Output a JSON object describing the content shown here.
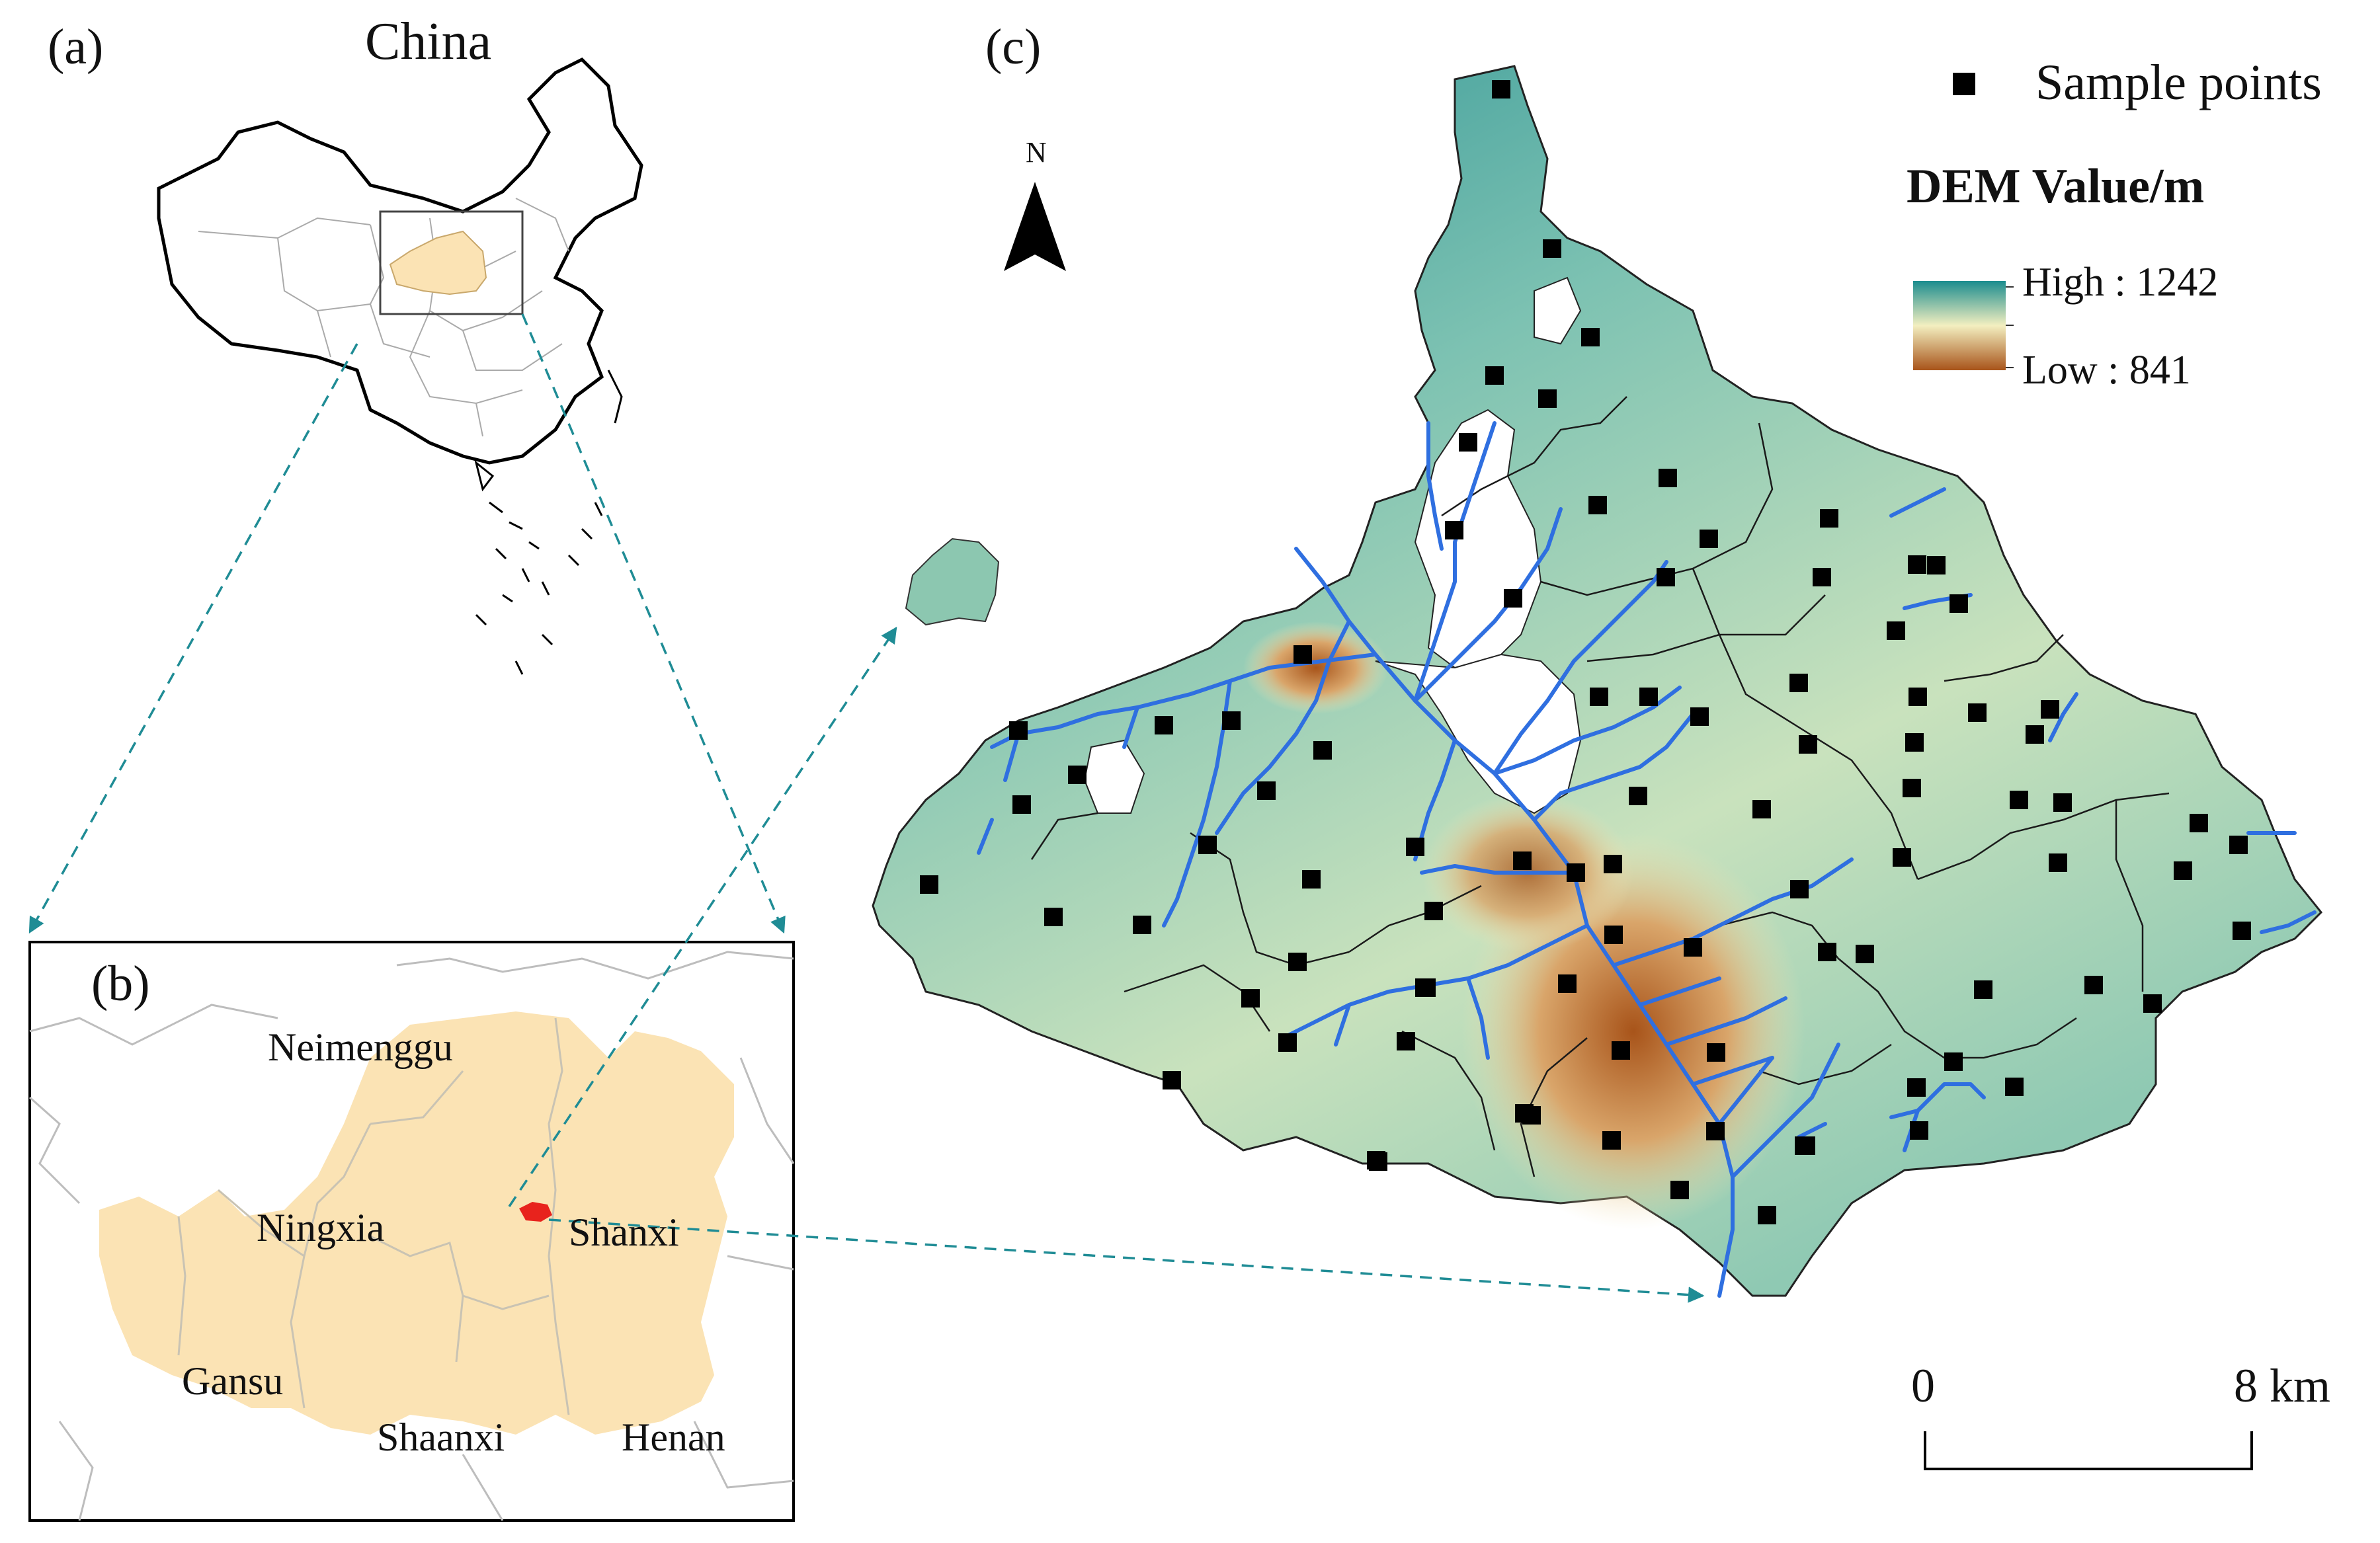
{
  "panels": {
    "a": {
      "label": "(a)",
      "title": "China"
    },
    "b": {
      "label": "(b)",
      "regions": [
        "Neimenggu",
        "Ningxia",
        "Shanxi",
        "Gansu",
        "Shaanxi",
        "Henan"
      ]
    },
    "c": {
      "label": "(c)"
    }
  },
  "north_arrow": {
    "label": "N"
  },
  "legend": {
    "sample_points": "Sample points",
    "dem_title": "DEM Value/m",
    "high": "High : 1242",
    "low": "Low : 841"
  },
  "scale_bar": {
    "start": "0",
    "end": "8 km"
  },
  "colors": {
    "study_region_fill": "#fbe3b4",
    "study_area": "#e8231d",
    "river": "#2f6fe0",
    "dem_high": "#1b8c8e",
    "dem_mid": "#f3efc0",
    "dem_low": "#a8541a",
    "arrow": "#1f8c95",
    "sample_point": "#000000"
  }
}
